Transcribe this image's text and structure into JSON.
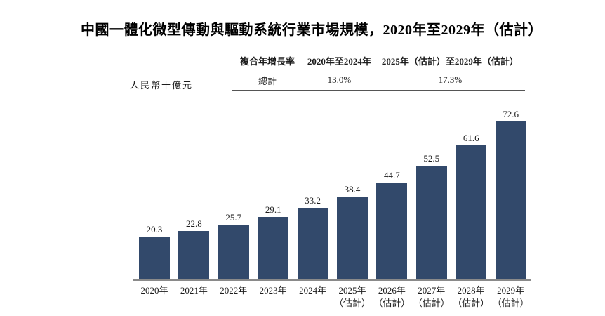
{
  "title": "中國一體化微型傳動與驅動系統行業市場規模，2020年至2029年（估計）",
  "y_axis_unit": "人民幣十億元",
  "cagr_table": {
    "header": [
      "複合年增長率",
      "2020年至2024年",
      "2025年（估計）至2029年（估計）"
    ],
    "rows": [
      [
        "總計",
        "13.0%",
        "17.3%"
      ]
    ]
  },
  "chart_data": {
    "type": "bar",
    "title": "中國一體化微型傳動與驅動系統行業市場規模，2020年至2029年（估計）",
    "categories": [
      "2020年",
      "2021年",
      "2022年",
      "2023年",
      "2024年",
      "2025年",
      "2026年",
      "2027年",
      "2028年",
      "2029年"
    ],
    "category_notes": [
      "",
      "",
      "",
      "",
      "",
      "（估計）",
      "（估計）",
      "（估計）",
      "（估計）",
      "（估計）"
    ],
    "values": [
      20.3,
      22.8,
      25.7,
      29.1,
      33.2,
      38.4,
      44.7,
      52.5,
      61.6,
      72.6
    ],
    "value_labels": [
      "20.3",
      "22.8",
      "25.7",
      "29.1",
      "33.2",
      "38.4",
      "44.7",
      "52.5",
      "61.6",
      "72.6"
    ],
    "ylabel": "人民幣十億元",
    "ylim": [
      0,
      80
    ],
    "grid": false,
    "legend": "none",
    "bar_color": "#32496B",
    "axis_line_color": "#8a8a8a",
    "cagr_2020_2024": "13.0%",
    "cagr_2025_2029": "17.3%"
  }
}
